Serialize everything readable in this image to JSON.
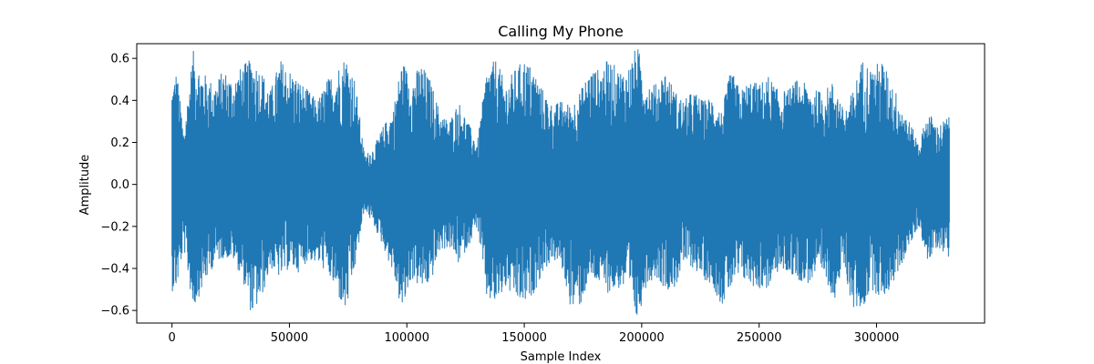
{
  "chart_data": {
    "type": "line",
    "title": "Calling My Phone",
    "xlabel": "Sample Index",
    "ylabel": "Amplitude",
    "xlim": [
      -15000,
      346000
    ],
    "ylim": [
      -0.66,
      0.67
    ],
    "xticks": [
      0,
      50000,
      100000,
      150000,
      200000,
      250000,
      300000
    ],
    "xtick_labels": [
      "0",
      "50000",
      "100000",
      "150000",
      "200000",
      "250000",
      "300000"
    ],
    "yticks": [
      -0.6,
      -0.4,
      -0.2,
      0.0,
      0.2,
      0.4,
      0.6
    ],
    "ytick_labels": [
      "−0.6",
      "−0.4",
      "−0.2",
      "0.0",
      "0.2",
      "0.4",
      "0.6"
    ],
    "grid": false,
    "legend": "none",
    "series": [
      {
        "color": "#1f77b4",
        "sample_count": 331000,
        "envelope": {
          "x": [
            0,
            2000,
            5000,
            9000,
            12000,
            18000,
            22000,
            26000,
            30000,
            34000,
            38000,
            42000,
            46000,
            50000,
            54000,
            58000,
            62000,
            66000,
            70000,
            74000,
            78000,
            82000,
            86000,
            90000,
            94000,
            98000,
            102000,
            106000,
            110000,
            114000,
            118000,
            122000,
            126000,
            130000,
            134000,
            138000,
            142000,
            146000,
            150000,
            154000,
            158000,
            162000,
            166000,
            170000,
            174000,
            178000,
            182000,
            186000,
            190000,
            194000,
            198000,
            202000,
            206000,
            210000,
            214000,
            218000,
            222000,
            226000,
            230000,
            234000,
            238000,
            242000,
            246000,
            250000,
            254000,
            258000,
            262000,
            266000,
            270000,
            274000,
            278000,
            282000,
            286000,
            290000,
            294000,
            298000,
            302000,
            306000,
            310000,
            314000,
            318000,
            322000,
            326000,
            331000
          ],
          "max": [
            0.47,
            0.55,
            0.25,
            0.64,
            0.55,
            0.48,
            0.55,
            0.5,
            0.57,
            0.6,
            0.55,
            0.45,
            0.6,
            0.55,
            0.5,
            0.45,
            0.4,
            0.5,
            0.55,
            0.62,
            0.5,
            0.14,
            0.18,
            0.28,
            0.35,
            0.6,
            0.5,
            0.58,
            0.5,
            0.35,
            0.3,
            0.4,
            0.3,
            0.2,
            0.55,
            0.6,
            0.48,
            0.55,
            0.6,
            0.55,
            0.45,
            0.38,
            0.4,
            0.38,
            0.45,
            0.55,
            0.55,
            0.6,
            0.55,
            0.55,
            0.67,
            0.5,
            0.48,
            0.55,
            0.45,
            0.4,
            0.45,
            0.4,
            0.42,
            0.35,
            0.55,
            0.45,
            0.5,
            0.48,
            0.52,
            0.45,
            0.45,
            0.5,
            0.48,
            0.45,
            0.45,
            0.5,
            0.35,
            0.45,
            0.6,
            0.55,
            0.6,
            0.5,
            0.4,
            0.3,
            0.2,
            0.35,
            0.28,
            0.33
          ],
          "min": [
            -0.51,
            -0.5,
            -0.3,
            -0.6,
            -0.52,
            -0.38,
            -0.35,
            -0.36,
            -0.45,
            -0.63,
            -0.55,
            -0.4,
            -0.45,
            -0.4,
            -0.42,
            -0.36,
            -0.38,
            -0.42,
            -0.52,
            -0.62,
            -0.4,
            -0.12,
            -0.2,
            -0.3,
            -0.42,
            -0.62,
            -0.45,
            -0.5,
            -0.48,
            -0.32,
            -0.3,
            -0.38,
            -0.3,
            -0.2,
            -0.55,
            -0.58,
            -0.5,
            -0.55,
            -0.58,
            -0.52,
            -0.42,
            -0.36,
            -0.4,
            -0.6,
            -0.58,
            -0.45,
            -0.48,
            -0.52,
            -0.5,
            -0.5,
            -0.66,
            -0.48,
            -0.44,
            -0.5,
            -0.5,
            -0.38,
            -0.4,
            -0.45,
            -0.48,
            -0.58,
            -0.5,
            -0.45,
            -0.48,
            -0.5,
            -0.5,
            -0.42,
            -0.42,
            -0.45,
            -0.48,
            -0.45,
            -0.45,
            -0.55,
            -0.4,
            -0.6,
            -0.6,
            -0.5,
            -0.55,
            -0.5,
            -0.4,
            -0.3,
            -0.2,
            -0.38,
            -0.3,
            -0.35
          ]
        }
      }
    ]
  }
}
